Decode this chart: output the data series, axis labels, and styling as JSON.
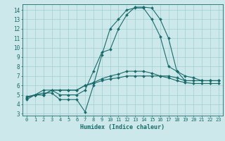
{
  "title": "",
  "xlabel": "Humidex (Indice chaleur)",
  "ylabel": "",
  "bg_color": "#cce8ea",
  "grid_color": "#a0cfd2",
  "line_color": "#1a6b6b",
  "xlim": [
    -0.5,
    23.5
  ],
  "ylim": [
    2.8,
    14.6
  ],
  "yticks": [
    3,
    4,
    5,
    6,
    7,
    8,
    9,
    10,
    11,
    12,
    13,
    14
  ],
  "xticks": [
    0,
    1,
    2,
    3,
    4,
    5,
    6,
    7,
    8,
    9,
    10,
    11,
    12,
    13,
    14,
    15,
    16,
    17,
    18,
    19,
    20,
    21,
    22,
    23
  ],
  "series": [
    [
      4.5,
      5.0,
      5.0,
      5.5,
      5.5,
      5.5,
      5.5,
      6.0,
      6.2,
      6.5,
      6.7,
      6.8,
      7.0,
      7.0,
      7.0,
      7.0,
      7.0,
      7.0,
      6.8,
      6.5,
      6.5,
      6.5,
      6.5,
      6.5
    ],
    [
      4.8,
      5.0,
      5.2,
      5.2,
      4.5,
      4.5,
      4.5,
      3.2,
      6.0,
      9.2,
      12.0,
      13.0,
      14.0,
      14.2,
      14.2,
      13.0,
      11.2,
      8.0,
      7.5,
      7.0,
      6.8,
      6.5,
      6.5,
      6.5
    ],
    [
      4.7,
      5.0,
      5.5,
      5.5,
      5.0,
      5.0,
      5.0,
      5.5,
      7.5,
      9.5,
      9.8,
      12.0,
      13.5,
      14.3,
      14.3,
      14.2,
      13.0,
      11.0,
      7.5,
      6.5,
      6.5,
      6.5,
      6.5,
      6.5
    ],
    [
      4.7,
      5.0,
      5.0,
      5.5,
      5.5,
      5.5,
      5.5,
      6.0,
      6.3,
      6.7,
      7.0,
      7.2,
      7.5,
      7.5,
      7.5,
      7.3,
      7.0,
      6.8,
      6.5,
      6.3,
      6.2,
      6.2,
      6.2,
      6.2
    ]
  ],
  "font_size_x": 5.0,
  "font_size_y": 5.5,
  "xlabel_fontsize": 6.0,
  "linewidth": 0.8,
  "markersize": 2.0
}
